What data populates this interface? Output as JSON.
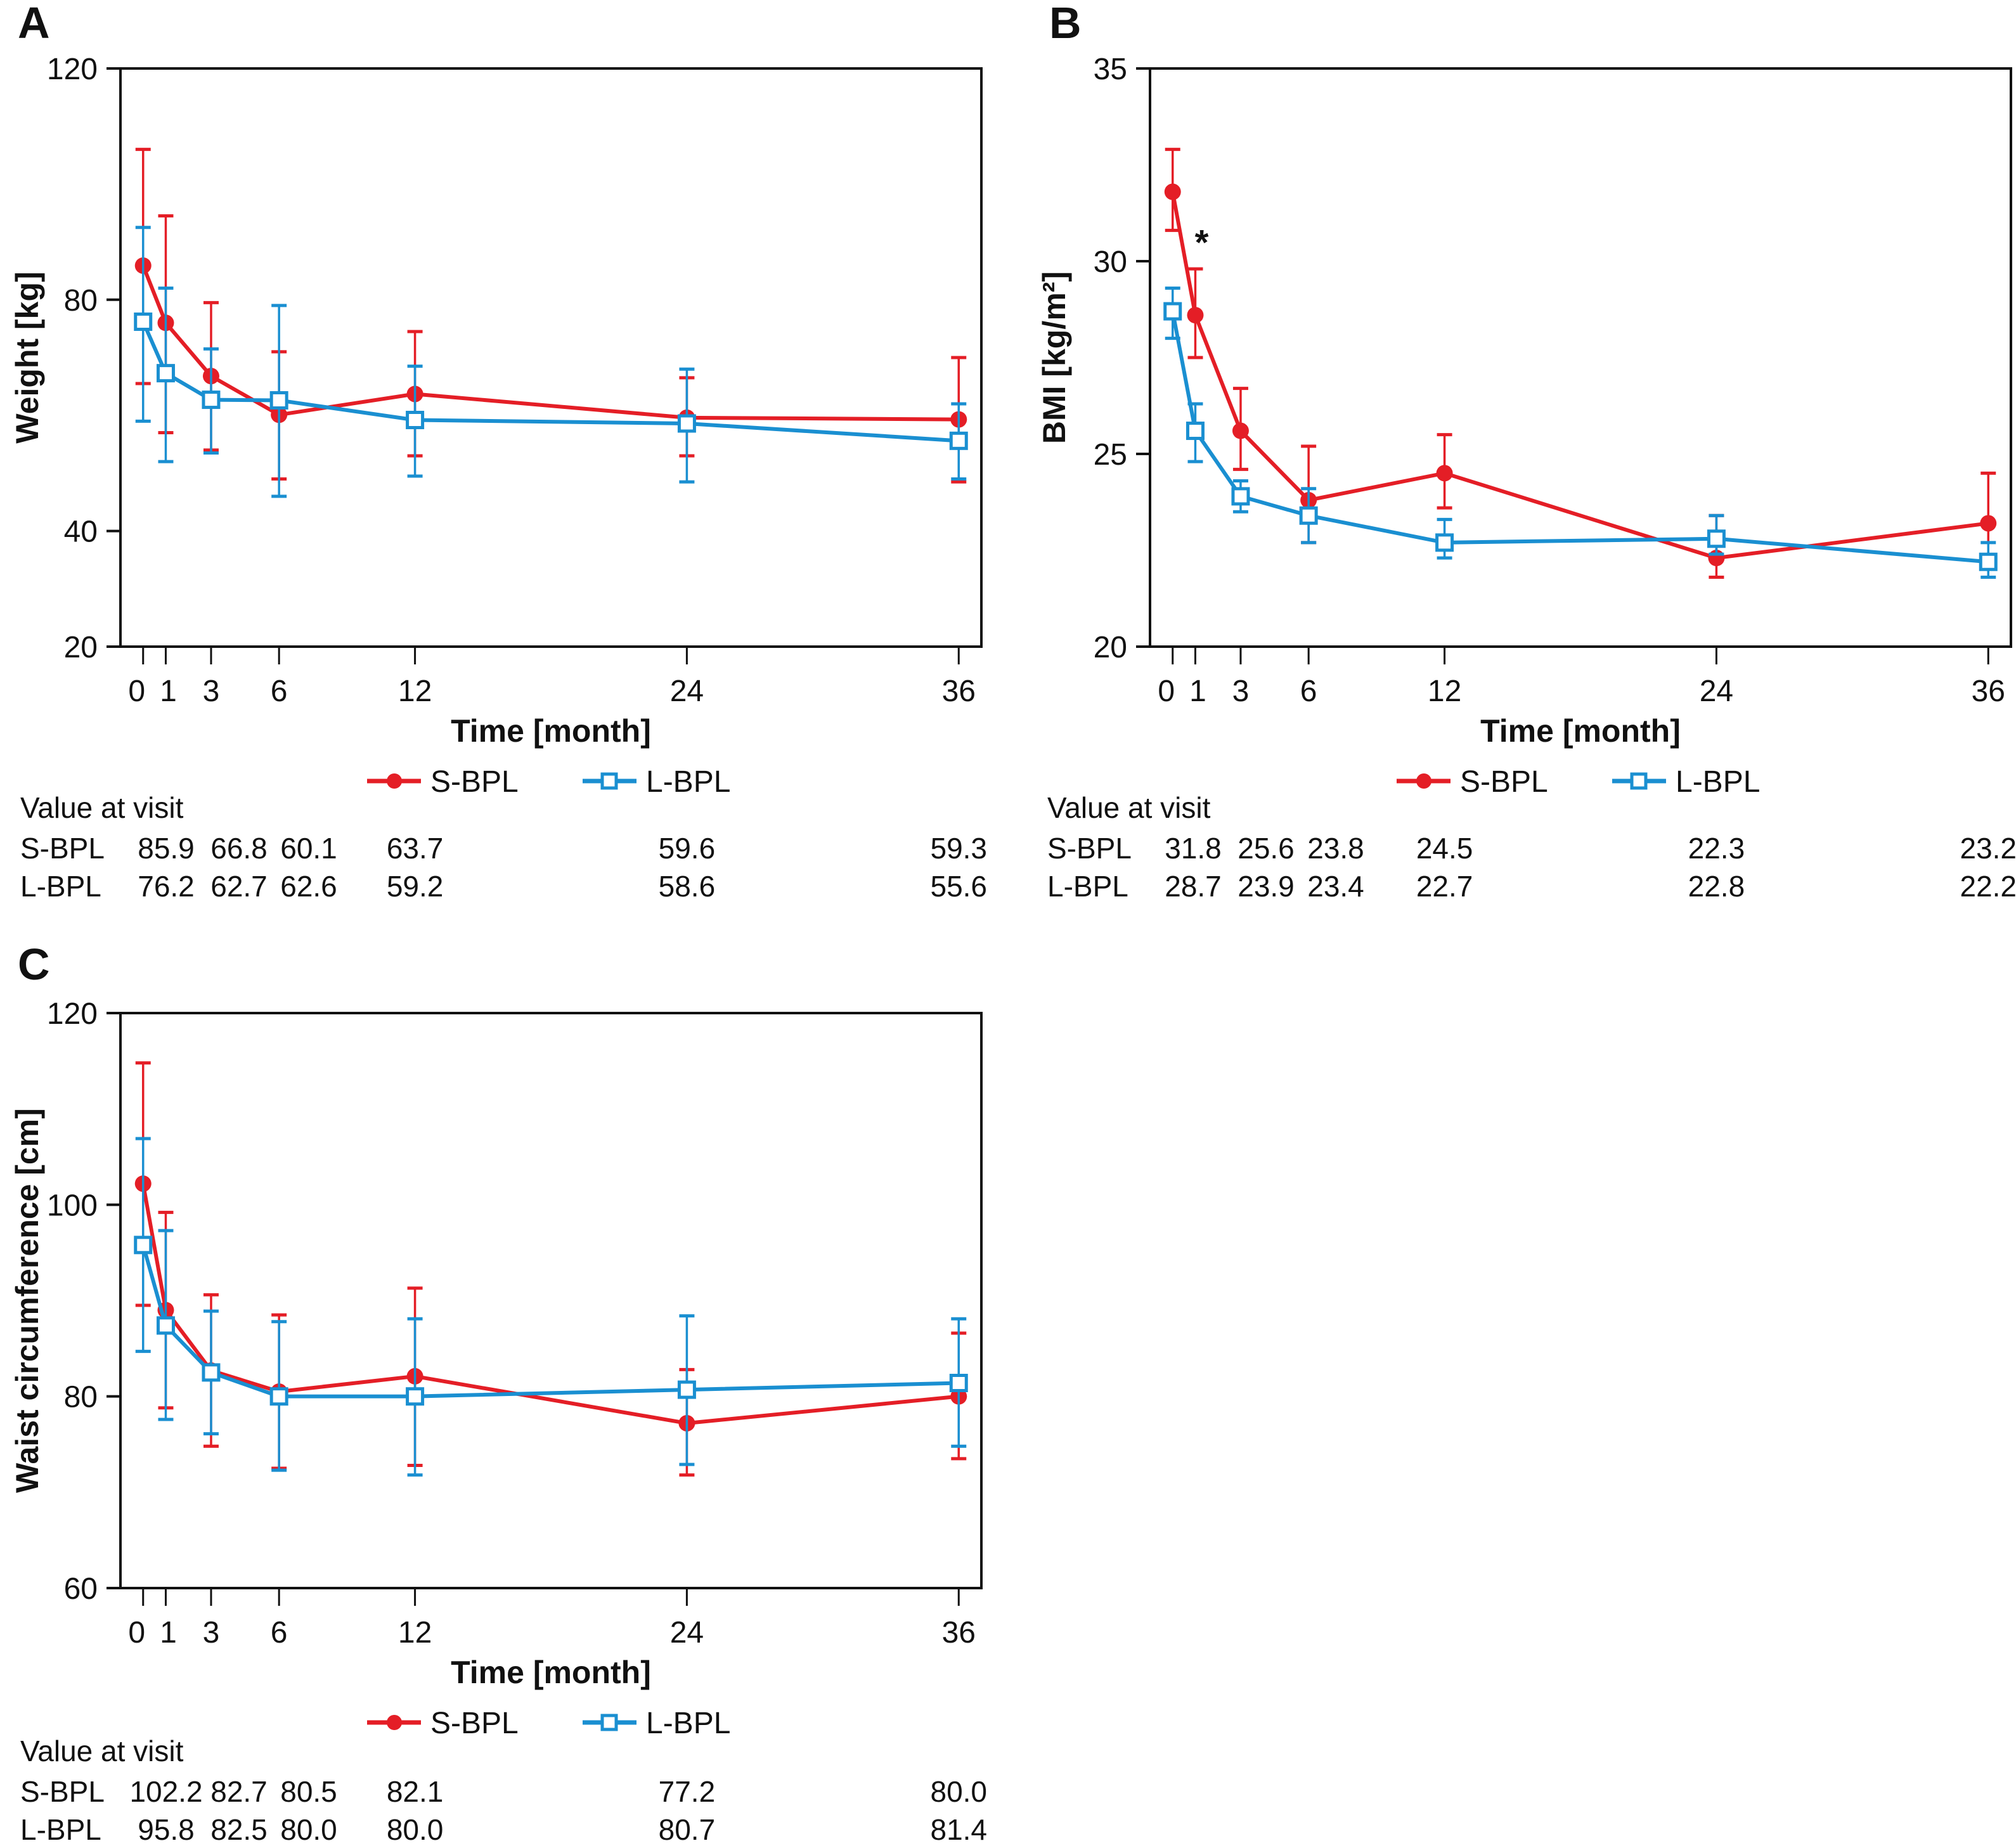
{
  "colors": {
    "s_bpl": "#e41e26",
    "l_bpl": "#1a8fd1",
    "axis": "#111111"
  },
  "legend": {
    "s_label": "S-BPL",
    "l_label": "L-BPL"
  },
  "table": {
    "header": "Value at visit"
  },
  "chart_data": [
    {
      "panel": "A",
      "type": "line",
      "title": "",
      "xlabel": "Time [month]",
      "ylabel": "Weight [kg]",
      "x": [
        0,
        1,
        3,
        6,
        12,
        24,
        36
      ],
      "xticks": [
        "0",
        "1",
        "3",
        "6",
        "12",
        "24",
        "36"
      ],
      "ylim": [
        20,
        120
      ],
      "yticks": [
        20,
        40,
        80,
        120
      ],
      "xlim": [
        -1,
        37
      ],
      "legend_position": "bottom-center",
      "series": [
        {
          "name": "S-BPL",
          "marker": "filled-circle",
          "values": [
            85.9,
            76.0,
            66.8,
            60.1,
            63.7,
            59.6,
            59.3
          ],
          "err_low": [
            65.5,
            57.0,
            54.0,
            49.0,
            53.0,
            53.0,
            48.5
          ],
          "err_high": [
            106.0,
            94.5,
            79.5,
            71.0,
            74.5,
            66.5,
            70.0
          ]
        },
        {
          "name": "L-BPL",
          "marker": "open-square",
          "values": [
            76.2,
            67.3,
            62.7,
            62.6,
            59.2,
            58.6,
            55.6
          ],
          "err_low": [
            59.0,
            52.0,
            53.5,
            46.0,
            49.5,
            48.5,
            49.0
          ],
          "err_high": [
            92.5,
            82.0,
            71.5,
            79.0,
            68.5,
            68.0,
            62.0
          ]
        }
      ],
      "annotations": [],
      "table": {
        "columns_months": [
          0,
          3,
          6,
          12,
          24,
          36
        ],
        "rows": [
          {
            "label": "S-BPL",
            "values": [
              "85.9",
              "66.8",
              "60.1",
              "63.7",
              "59.6",
              "59.3"
            ]
          },
          {
            "label": "L-BPL",
            "values": [
              "76.2",
              "62.7",
              "62.6",
              "59.2",
              "58.6",
              "55.6"
            ]
          }
        ]
      }
    },
    {
      "panel": "B",
      "type": "line",
      "title": "",
      "xlabel": "Time [month]",
      "ylabel": "BMI [kg/m²]",
      "x": [
        0,
        1,
        3,
        6,
        12,
        24,
        36
      ],
      "xticks": [
        "0",
        "1",
        "3",
        "6",
        "12",
        "24",
        "36"
      ],
      "ylim": [
        20,
        35
      ],
      "yticks": [
        20,
        25,
        30,
        35
      ],
      "xlim": [
        -1,
        37
      ],
      "legend_position": "bottom-center",
      "series": [
        {
          "name": "S-BPL",
          "marker": "filled-circle",
          "values": [
            31.8,
            28.6,
            25.6,
            23.8,
            24.5,
            22.3,
            23.2
          ],
          "err_low": [
            30.8,
            27.5,
            24.6,
            22.7,
            23.6,
            21.8,
            22.2
          ],
          "err_high": [
            32.9,
            29.8,
            26.7,
            25.2,
            25.5,
            23.4,
            24.5
          ]
        },
        {
          "name": "L-BPL",
          "marker": "open-square",
          "values": [
            28.7,
            25.6,
            23.9,
            23.4,
            22.7,
            22.8,
            22.2
          ],
          "err_low": [
            28.0,
            24.8,
            23.5,
            22.7,
            22.3,
            22.4,
            21.8
          ],
          "err_high": [
            29.3,
            26.3,
            24.3,
            24.1,
            23.3,
            23.4,
            22.7
          ]
        }
      ],
      "annotations": [
        {
          "text": "*",
          "x": 1,
          "y": 30.5
        }
      ],
      "table": {
        "columns_months": [
          0,
          3,
          6,
          12,
          24,
          36
        ],
        "rows": [
          {
            "label": "S-BPL",
            "values": [
              "31.8",
              "25.6",
              "23.8",
              "24.5",
              "22.3",
              "23.2"
            ]
          },
          {
            "label": "L-BPL",
            "values": [
              "28.7",
              "23.9",
              "23.4",
              "22.7",
              "22.8",
              "22.2"
            ]
          }
        ]
      }
    },
    {
      "panel": "C",
      "type": "line",
      "title": "",
      "xlabel": "Time [month]",
      "ylabel": "Waist circumference [cm]",
      "x": [
        0,
        1,
        3,
        6,
        12,
        24,
        36
      ],
      "xticks": [
        "0",
        "1",
        "3",
        "6",
        "12",
        "24",
        "36"
      ],
      "ylim": [
        60,
        120
      ],
      "yticks": [
        60,
        80,
        100,
        120
      ],
      "xlim": [
        -1,
        37
      ],
      "legend_position": "bottom-center",
      "series": [
        {
          "name": "S-BPL",
          "marker": "filled-circle",
          "values": [
            102.2,
            89.0,
            82.7,
            80.5,
            82.1,
            77.2,
            80.0
          ],
          "err_low": [
            89.5,
            78.8,
            74.8,
            72.5,
            72.8,
            71.8,
            73.5
          ],
          "err_high": [
            114.8,
            99.2,
            90.6,
            88.5,
            91.3,
            82.8,
            86.6
          ]
        },
        {
          "name": "L-BPL",
          "marker": "open-square",
          "values": [
            95.8,
            87.4,
            82.5,
            80.0,
            80.0,
            80.7,
            81.4
          ],
          "err_low": [
            84.7,
            77.6,
            76.1,
            72.3,
            71.8,
            72.9,
            74.8
          ],
          "err_high": [
            106.9,
            97.3,
            88.9,
            87.8,
            88.1,
            88.4,
            88.1
          ]
        }
      ],
      "annotations": [],
      "table": {
        "columns_months": [
          0,
          3,
          6,
          12,
          24,
          36
        ],
        "rows": [
          {
            "label": "S-BPL",
            "values": [
              "102.2",
              "82.7",
              "80.5",
              "82.1",
              "77.2",
              "80.0"
            ]
          },
          {
            "label": "L-BPL",
            "values": [
              "95.8",
              "82.5",
              "80.0",
              "80.0",
              "80.7",
              "81.4"
            ]
          }
        ]
      }
    }
  ]
}
